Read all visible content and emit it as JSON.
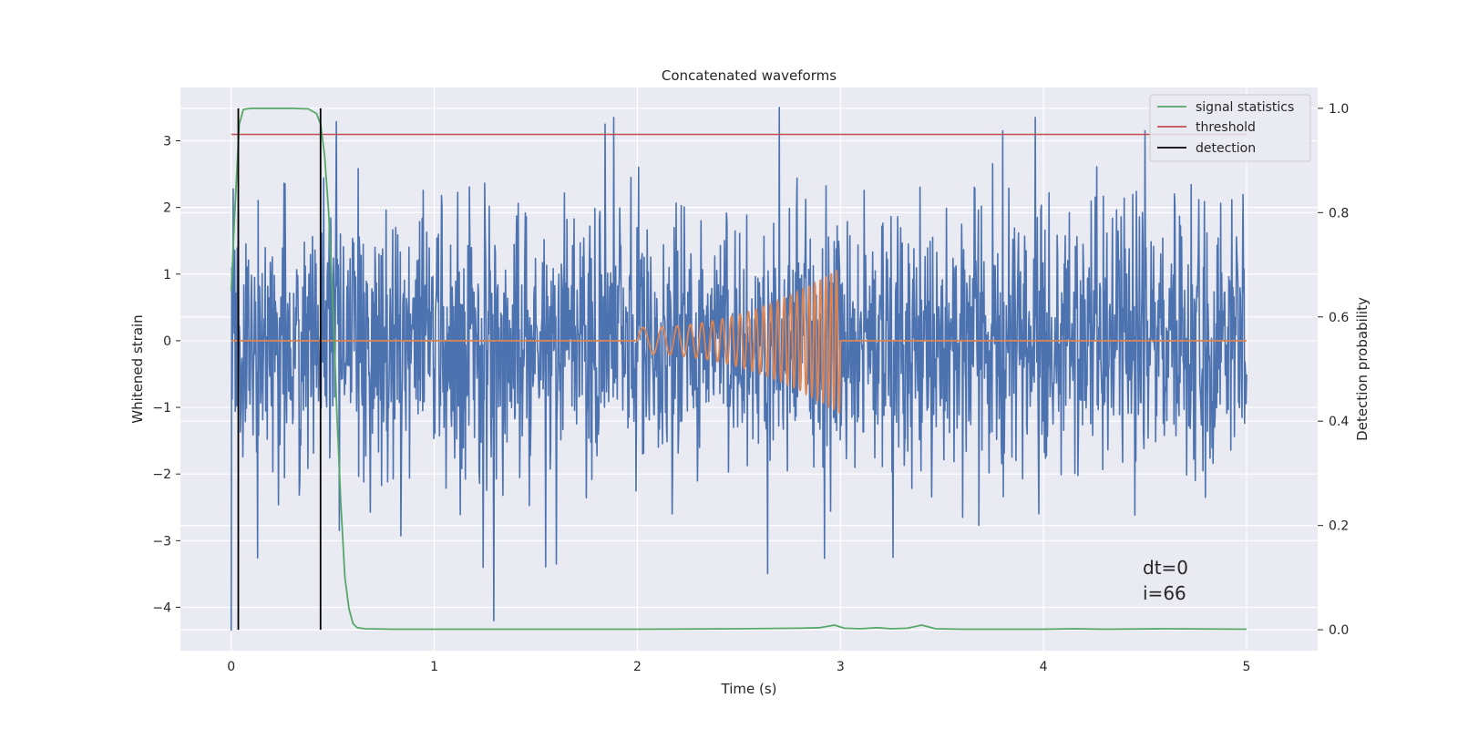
{
  "chart_data": {
    "type": "line",
    "title": "Concatenated waveforms",
    "xlabel": "Time (s)",
    "ylabel_left": "Whitened strain",
    "ylabel_right": "Detection probability",
    "xlim": [
      -0.25,
      5.35
    ],
    "ylim_left": [
      -4.65,
      3.8
    ],
    "ylim_right": [
      -0.04,
      1.04
    ],
    "x_ticks": [
      0,
      1,
      2,
      3,
      4,
      5
    ],
    "x_tick_labels": [
      "0",
      "1",
      "2",
      "3",
      "4",
      "5"
    ],
    "y_left_ticks": [
      -4,
      -3,
      -2,
      -1,
      0,
      1,
      2,
      3
    ],
    "y_left_tick_labels": [
      "−4",
      "−3",
      "−2",
      "−1",
      "0",
      "1",
      "2",
      "3"
    ],
    "y_right_ticks": [
      0.0,
      0.2,
      0.4,
      0.6,
      0.8,
      1.0
    ],
    "y_right_tick_labels": [
      "0.0",
      "0.2",
      "0.4",
      "0.6",
      "0.8",
      "1.0"
    ],
    "grid": true,
    "legend_position": "top-right",
    "series": [
      {
        "name": "signal statistics",
        "axis": "right",
        "color": "#55a868",
        "x": [
          0,
          0.02,
          0.04,
          0.06,
          0.1,
          0.2,
          0.3,
          0.38,
          0.42,
          0.44,
          0.46,
          0.48,
          0.5,
          0.52,
          0.54,
          0.56,
          0.58,
          0.6,
          0.62,
          0.66,
          0.8,
          1.0,
          1.5,
          2.0,
          2.5,
          2.8,
          2.9,
          2.97,
          3.02,
          3.1,
          3.18,
          3.25,
          3.33,
          3.4,
          3.47,
          3.6,
          4.0,
          4.15,
          4.3,
          4.6,
          5.0
        ],
        "y": [
          0.65,
          0.82,
          0.97,
          0.998,
          1.0,
          1.0,
          1.0,
          0.999,
          0.99,
          0.97,
          0.91,
          0.8,
          0.63,
          0.42,
          0.24,
          0.1,
          0.04,
          0.012,
          0.004,
          0.002,
          0.001,
          0.001,
          0.001,
          0.001,
          0.002,
          0.003,
          0.004,
          0.009,
          0.003,
          0.002,
          0.004,
          0.002,
          0.003,
          0.009,
          0.002,
          0.001,
          0.001,
          0.002,
          0.001,
          0.002,
          0.001
        ]
      },
      {
        "name": "threshold",
        "axis": "right",
        "color": "#c44e52",
        "x": [
          0,
          5
        ],
        "y": [
          0.95,
          0.95
        ]
      },
      {
        "name": "detection",
        "axis": "right",
        "color": "#000000",
        "events": [
          0.035,
          0.44
        ],
        "y_span": [
          0.0,
          1.0
        ]
      },
      {
        "name": "",
        "axis": "left",
        "color": "#4c72b0",
        "noise": {
          "x_range": [
            0,
            5
          ],
          "n_points": 2000,
          "std": 1.0,
          "min": -4.35,
          "max": 3.5,
          "notable_peaks": [
            {
              "x": 0.0,
              "y": -4.35
            },
            {
              "x": 1.84,
              "y": 3.25
            },
            {
              "x": 2.7,
              "y": 3.5
            },
            {
              "x": 3.8,
              "y": 3.15
            },
            {
              "x": 4.5,
              "y": 3.15
            },
            {
              "x": 1.24,
              "y": -3.4
            },
            {
              "x": 1.6,
              "y": -3.35
            },
            {
              "x": 3.26,
              "y": -3.25
            }
          ]
        }
      },
      {
        "name": "",
        "axis": "left",
        "color": "#dd8452",
        "chirp": {
          "start": 2.0,
          "end": 3.0,
          "peak_amplitude": 1.1,
          "cycles": 24
        }
      }
    ],
    "annotations": [
      "dt=0",
      "i=66"
    ]
  }
}
